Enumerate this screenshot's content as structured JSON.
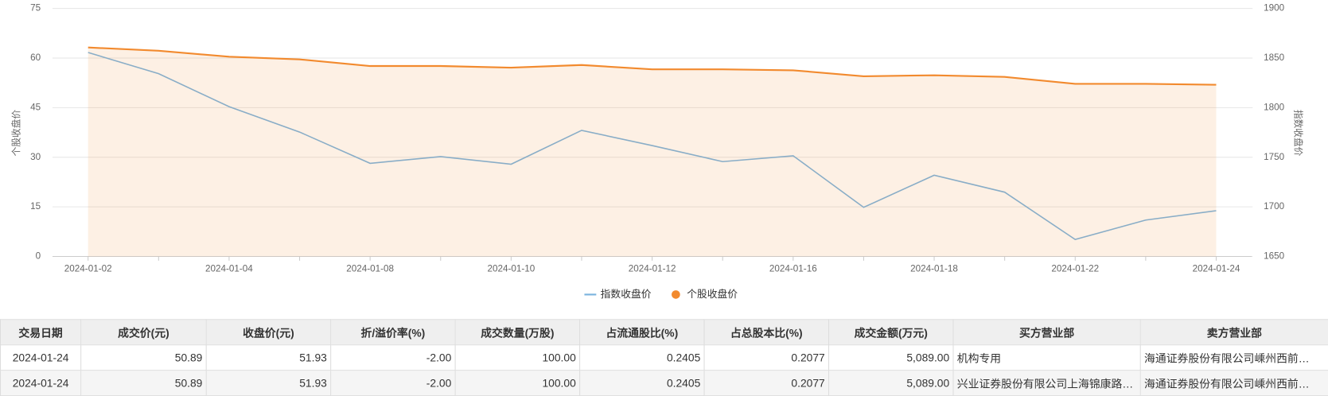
{
  "chart_data": {
    "type": "line",
    "categories": [
      "2024-01-02",
      null,
      "2024-01-04",
      null,
      "2024-01-08",
      null,
      "2024-01-10",
      null,
      "2024-01-12",
      null,
      "2024-01-16",
      null,
      "2024-01-18",
      null,
      "2024-01-22",
      null,
      "2024-01-24"
    ],
    "series": [
      {
        "name": "指数收盘价",
        "color": "#7ab3de",
        "axis": "y2",
        "values": [
          1855.6,
          1834.3,
          1801.0,
          1775.4,
          1743.9,
          1750.7,
          1743.0,
          1777.1,
          1761.8,
          1745.6,
          1751.5,
          1699.5,
          1731.9,
          1714.8,
          1667.1,
          1686.7,
          1696.1
        ]
      },
      {
        "name": "个股收盘价",
        "color": "#f28a2e",
        "area": true,
        "values": [
          63.2,
          62.2,
          60.4,
          59.6,
          57.6,
          57.6,
          57.1,
          57.9,
          56.6,
          56.6,
          56.3,
          54.5,
          54.8,
          54.3,
          52.2,
          52.2,
          51.93
        ]
      }
    ],
    "ylabel": "个股收盘价",
    "y2label": "指数收盘价",
    "ylim": [
      0,
      75
    ],
    "yticks": [
      0,
      15,
      30,
      45,
      60,
      75
    ],
    "y2lim": [
      1650,
      1900
    ],
    "y2ticks": [
      1650,
      1700,
      1750,
      1800,
      1850,
      1900
    ],
    "grid": true,
    "legend": "bottom"
  },
  "table": {
    "columns": [
      "交易日期",
      "成交价(元)",
      "收盘价(元)",
      "折/溢价率(%)",
      "成交数量(万股)",
      "占流通股比(%)",
      "占总股本比(%)",
      "成交金额(万元)",
      "买方营业部",
      "卖方营业部"
    ],
    "rows": [
      [
        "2024-01-24",
        "50.89",
        "51.93",
        "-2.00",
        "100.00",
        "0.2405",
        "0.2077",
        "5,089.00",
        "机构专用",
        "海通证券股份有限公司嵊州西前…"
      ],
      [
        "2024-01-24",
        "50.89",
        "51.93",
        "-2.00",
        "100.00",
        "0.2405",
        "0.2077",
        "5,089.00",
        "兴业证券股份有限公司上海锦康路…",
        "海通证券股份有限公司嵊州西前…"
      ]
    ]
  }
}
